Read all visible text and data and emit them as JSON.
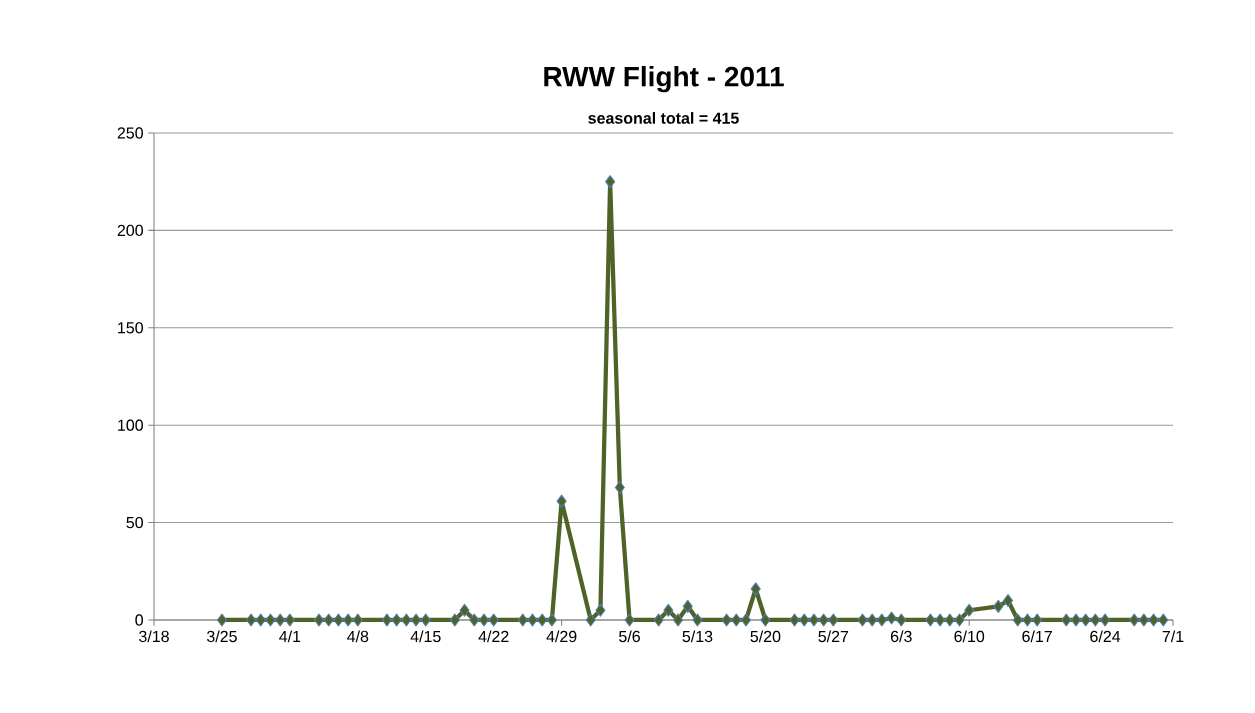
{
  "chart_data": {
    "type": "line",
    "title": "RWW Flight - 2011",
    "subtitle": "seasonal total = 415",
    "x": [
      "2011-03-25",
      "2011-03-28",
      "2011-03-29",
      "2011-03-30",
      "2011-03-31",
      "2011-04-01",
      "2011-04-04",
      "2011-04-05",
      "2011-04-06",
      "2011-04-07",
      "2011-04-08",
      "2011-04-11",
      "2011-04-12",
      "2011-04-13",
      "2011-04-14",
      "2011-04-15",
      "2011-04-18",
      "2011-04-19",
      "2011-04-20",
      "2011-04-21",
      "2011-04-22",
      "2011-04-25",
      "2011-04-26",
      "2011-04-27",
      "2011-04-28",
      "2011-04-29",
      "2011-05-02",
      "2011-05-03",
      "2011-05-04",
      "2011-05-05",
      "2011-05-06",
      "2011-05-09",
      "2011-05-10",
      "2011-05-11",
      "2011-05-12",
      "2011-05-13",
      "2011-05-16",
      "2011-05-17",
      "2011-05-18",
      "2011-05-19",
      "2011-05-20",
      "2011-05-23",
      "2011-05-24",
      "2011-05-25",
      "2011-05-26",
      "2011-05-27",
      "2011-05-30",
      "2011-05-31",
      "2011-06-01",
      "2011-06-02",
      "2011-06-03",
      "2011-06-06",
      "2011-06-07",
      "2011-06-08",
      "2011-06-09",
      "2011-06-10",
      "2011-06-13",
      "2011-06-14",
      "2011-06-15",
      "2011-06-16",
      "2011-06-17",
      "2011-06-20",
      "2011-06-21",
      "2011-06-22",
      "2011-06-23",
      "2011-06-24",
      "2011-06-27",
      "2011-06-28",
      "2011-06-29",
      "2011-06-30"
    ],
    "values": [
      0,
      0,
      0,
      0,
      0,
      0,
      0,
      0,
      0,
      0,
      0,
      0,
      0,
      0,
      0,
      0,
      0,
      5,
      0,
      0,
      0,
      0,
      0,
      0,
      0,
      61,
      0,
      5,
      225,
      68,
      0,
      0,
      5,
      0,
      7,
      0,
      0,
      0,
      0,
      16,
      0,
      0,
      0,
      0,
      0,
      0,
      0,
      0,
      0,
      1,
      0,
      0,
      0,
      0,
      0,
      5,
      7,
      10,
      0,
      0,
      0,
      0,
      0,
      0,
      0,
      0,
      0,
      0,
      0,
      0
    ],
    "color": "#4f6228",
    "marker": "diamond",
    "line_style": "solid",
    "grid": "y",
    "xlim": [
      "2011-03-18",
      "2011-07-01"
    ],
    "xticks": [
      {
        "value": "2011-03-18",
        "label": "3/18"
      },
      {
        "value": "2011-03-25",
        "label": "3/25"
      },
      {
        "value": "2011-04-01",
        "label": "4/1"
      },
      {
        "value": "2011-04-08",
        "label": "4/8"
      },
      {
        "value": "2011-04-15",
        "label": "4/15"
      },
      {
        "value": "2011-04-22",
        "label": "4/22"
      },
      {
        "value": "2011-04-29",
        "label": "4/29"
      },
      {
        "value": "2011-05-06",
        "label": "5/6"
      },
      {
        "value": "2011-05-13",
        "label": "5/13"
      },
      {
        "value": "2011-05-20",
        "label": "5/20"
      },
      {
        "value": "2011-05-27",
        "label": "5/27"
      },
      {
        "value": "2011-06-03",
        "label": "6/3"
      },
      {
        "value": "2011-06-10",
        "label": "6/10"
      },
      {
        "value": "2011-06-17",
        "label": "6/17"
      },
      {
        "value": "2011-06-24",
        "label": "6/24"
      },
      {
        "value": "2011-07-01",
        "label": "7/1"
      }
    ],
    "ylim": [
      0,
      250
    ],
    "yticks": [
      0,
      50,
      100,
      150,
      200,
      250
    ]
  }
}
